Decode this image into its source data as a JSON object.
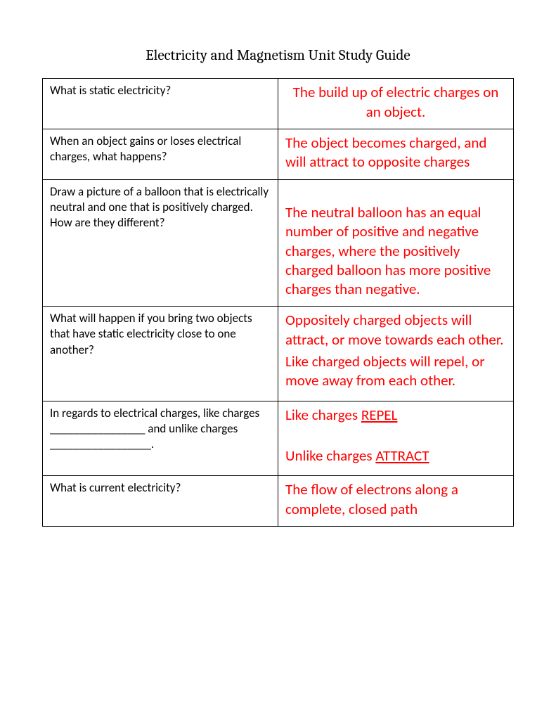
{
  "title": "Electricity and Magnetism Unit Study Guide",
  "table": {
    "border_color": "#000000",
    "question_color": "#000000",
    "question_fontsize": 17,
    "answer_color": "#ff0000",
    "answer_fontsize": 21,
    "rows": [
      {
        "question": "What is static electricity?",
        "answer_centered": true,
        "answer": "The build up of electric charges on an object."
      },
      {
        "question": "When an object gains or loses electrical charges, what happens?",
        "answer_centered": false,
        "answer": "The object becomes charged, and will attract to opposite charges"
      },
      {
        "question": "Draw a picture of a balloon that is electrically neutral and one that is positively charged. How are they different?",
        "answer_centered": false,
        "answer": "The neutral balloon has an equal number of positive and negative charges, where the positively charged balloon has more positive charges than negative."
      },
      {
        "question": "What will happen if you bring two objects that have static electricity close to one another?",
        "answer_centered": false,
        "answer_parts": [
          "Oppositely charged objects will attract, or move towards each other.",
          "Like charged objects will repel, or move away from each other."
        ]
      },
      {
        "question": "In regards to electrical charges, like charges ________________ and unlike charges _________________.",
        "answer_centered": false,
        "answer_html_parts": [
          {
            "pre": "Like charges ",
            "underline": "REPEL"
          },
          {
            "spacer": true
          },
          {
            "pre": "Unlike charges ",
            "underline": "ATTRACT"
          }
        ]
      },
      {
        "question": "What is current electricity?",
        "answer_centered": false,
        "answer": "The flow of electrons along a complete, closed path"
      }
    ]
  }
}
